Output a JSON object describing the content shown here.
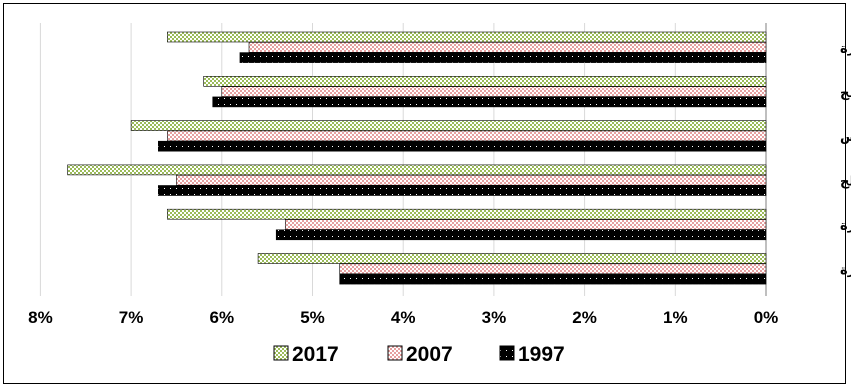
{
  "chart_data": {
    "type": "bar",
    "orientation": "horizontal",
    "x_reversed": true,
    "categories": [
      "قطاع غزة",
      "رفـح",
      "خانيونس",
      "دير البلح",
      "غـزة",
      "شمال غزة"
    ],
    "series": [
      {
        "name": "2017",
        "values": [
          6.6,
          6.2,
          7.0,
          7.7,
          6.6,
          5.6
        ],
        "color": "#9bbb59",
        "pattern": "checker-green"
      },
      {
        "name": "2007",
        "values": [
          5.7,
          6.0,
          6.6,
          6.5,
          5.3,
          4.7
        ],
        "color": "#e6a0a0",
        "pattern": "checker-pink"
      },
      {
        "name": "1997",
        "values": [
          5.8,
          6.1,
          6.7,
          6.7,
          5.4,
          4.7
        ],
        "color": "#000000",
        "pattern": "dotted-black"
      }
    ],
    "xlim": [
      0,
      8
    ],
    "xticks": [
      "0%",
      "1%",
      "2%",
      "3%",
      "4%",
      "5%",
      "6%",
      "7%",
      "8%"
    ],
    "grid": true,
    "legend_position": "bottom",
    "legend_order": [
      "2017",
      "2007",
      "1997"
    ]
  }
}
